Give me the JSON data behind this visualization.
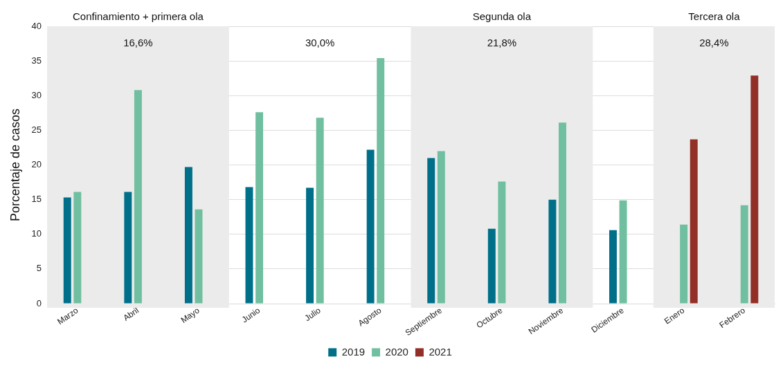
{
  "chart_data": {
    "type": "bar",
    "ylabel": "Porcentaje de casos",
    "categories": [
      "Marzo",
      "Abril",
      "Mayo",
      "Junio",
      "Julio",
      "Agosto",
      "Septiembre",
      "Octubre",
      "Noviembre",
      "Diciembre",
      "Enero",
      "Febrero"
    ],
    "series": [
      {
        "name": "2019",
        "color": "#00708a",
        "values": [
          15.3,
          16.1,
          19.7,
          16.8,
          16.7,
          22.2,
          21.0,
          10.8,
          15.0,
          10.6,
          null,
          null
        ]
      },
      {
        "name": "2020",
        "color": "#70bfa0",
        "values": [
          16.1,
          30.8,
          13.6,
          27.6,
          26.8,
          35.4,
          22.0,
          17.6,
          26.1,
          14.9,
          11.4,
          14.2
        ]
      },
      {
        "name": "2021",
        "color": "#922f27",
        "values": [
          null,
          null,
          null,
          null,
          null,
          null,
          null,
          null,
          null,
          null,
          23.7,
          32.9
        ]
      }
    ],
    "ylim": [
      0,
      40
    ],
    "yticks": [
      0,
      5,
      10,
      15,
      20,
      25,
      30,
      35,
      40
    ],
    "grid": "y",
    "legend": "bottom",
    "bands": [
      {
        "axis": "x",
        "from": "Marzo",
        "to": "Mayo",
        "label": "Confinamiento + primera ola",
        "color": "#ebebeb"
      },
      {
        "axis": "x",
        "from": "Septiembre",
        "to": "Noviembre",
        "label": "Segunda ola",
        "color": "#ebebeb"
      },
      {
        "axis": "x",
        "from": "Enero",
        "to": "Febrero",
        "label": "Tercera ola",
        "color": "#ebebeb"
      }
    ],
    "annotations": [
      "16,6%",
      "30,0%",
      "21,8%",
      "28,4%"
    ]
  }
}
